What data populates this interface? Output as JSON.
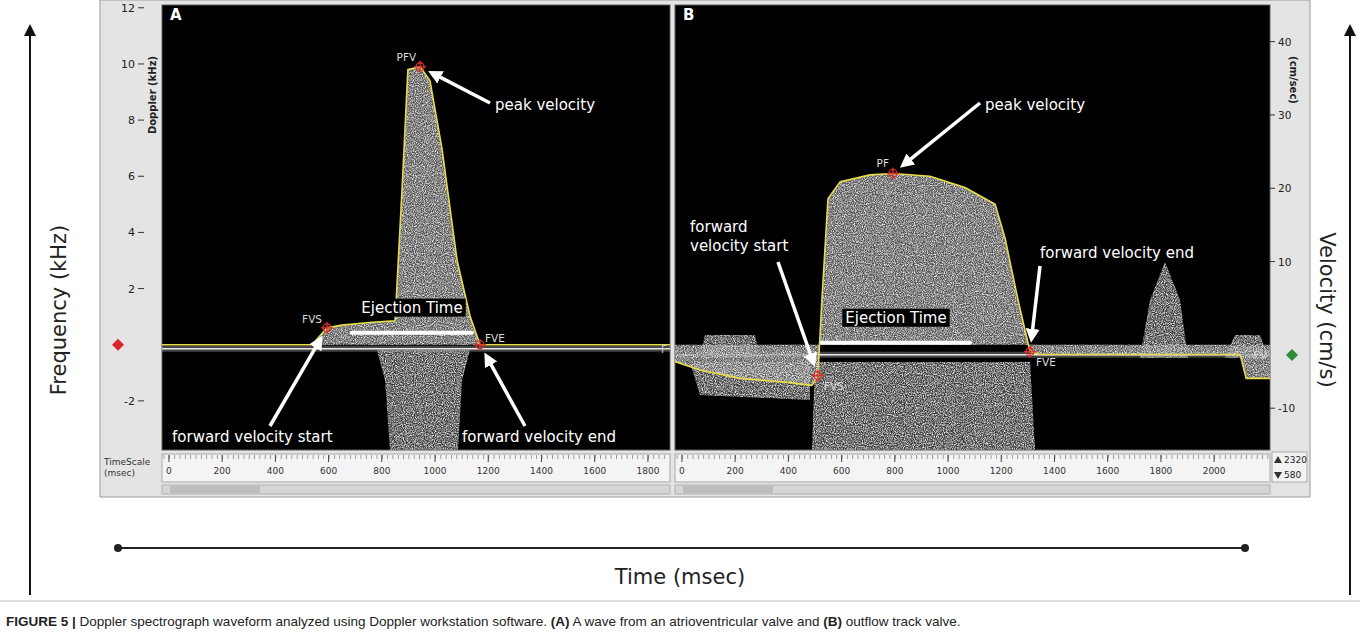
{
  "figure": {
    "y_label": "Frequency (kHz)",
    "y2_label": "Velocity (cm/s)",
    "x_label": "Time (msec)",
    "timescale_label": "TimeScale (msec)",
    "spinner_values": [
      2320,
      580
    ],
    "caption": [
      {
        "text": "FIGURE 5 |",
        "bold": true
      },
      {
        "text": " Doppler spectrograph waveform analyzed using Doppler workstation software. ",
        "bold": false
      },
      {
        "text": "(A)",
        "bold": true
      },
      {
        "text": " A wave from an atrioventricular valve and ",
        "bold": false
      },
      {
        "text": "(B)",
        "bold": true
      },
      {
        "text": " outflow track valve.",
        "bold": false
      }
    ]
  },
  "chart_data": [
    {
      "type": "line",
      "title": "A",
      "y_label": "Doppler (kHz)",
      "xlim": [
        -26,
        1883
      ],
      "xticks": [
        0,
        200,
        400,
        600,
        800,
        1000,
        1200,
        1400,
        1600,
        1800
      ],
      "ylim": [
        -3.75,
        12.1
      ],
      "yticks": [
        -2,
        2,
        4,
        6,
        8,
        10,
        12
      ],
      "x": [
        -26,
        538,
        594,
        650,
        763,
        850,
        876,
        898,
        944,
        981,
        1026,
        1083,
        1132,
        1169,
        1883
      ],
      "series": [
        {
          "color": "#e6dc4a",
          "values": [
            0,
            0,
            0.6,
            0.7,
            0.8,
            0.85,
            5.5,
            9.8,
            9.9,
            9.4,
            7.0,
            3.0,
            1.0,
            0,
            0
          ]
        }
      ],
      "markers": [
        {
          "label": "FVS",
          "x": 594,
          "y": 0.6,
          "annotation": "forward velocity start"
        },
        {
          "label": "PFV",
          "x": 944,
          "y": 9.9,
          "annotation": "peak velocity"
        },
        {
          "label": "FVE",
          "x": 1169,
          "y": 0,
          "annotation": "forward velocity end"
        }
      ],
      "ejection_time": {
        "label": "Ejection Time",
        "start": 688,
        "end": 1139,
        "y": 0.43
      },
      "edge_label": "F"
    },
    {
      "type": "line",
      "title": "B",
      "y2_label": "(cm/sec)",
      "xlim": [
        -26,
        2210
      ],
      "xticks": [
        0,
        200,
        400,
        600,
        800,
        1000,
        1200,
        1400,
        1600,
        1800,
        2000
      ],
      "ylim": [
        -3.75,
        12.1
      ],
      "y2lim": [
        -15.7,
        45
      ],
      "y2ticks": [
        -10,
        10,
        20,
        30,
        40
      ],
      "x": [
        -26,
        68,
        218,
        406,
        489,
        511,
        526,
        549,
        594,
        707,
        793,
        932,
        1064,
        1177,
        1214,
        1263,
        1308,
        1346,
        2098,
        2120,
        2210
      ],
      "series": [
        {
          "color": "#e6dc4a",
          "values": [
            -0.6,
            -0.9,
            -1.2,
            -1.35,
            -1.45,
            -1.1,
            1.6,
            5.2,
            5.8,
            6.05,
            6.1,
            6.0,
            5.6,
            5.0,
            3.8,
            1.6,
            -0.25,
            -0.35,
            -0.35,
            -1.2,
            -1.2
          ]
        }
      ],
      "markers": [
        {
          "label": "FVS",
          "x": 511,
          "y": -1.1,
          "annotation": "forward velocity start"
        },
        {
          "label": "PF",
          "x": 793,
          "y": 6.1,
          "annotation": "peak velocity"
        },
        {
          "label": "FVE",
          "x": 1308,
          "y": -0.25,
          "annotation": "forward velocity end"
        }
      ],
      "ejection_time": {
        "label": "Ejection Time",
        "start": 526,
        "end": 1083,
        "y": 0.07
      },
      "edge_label": "FV"
    }
  ]
}
